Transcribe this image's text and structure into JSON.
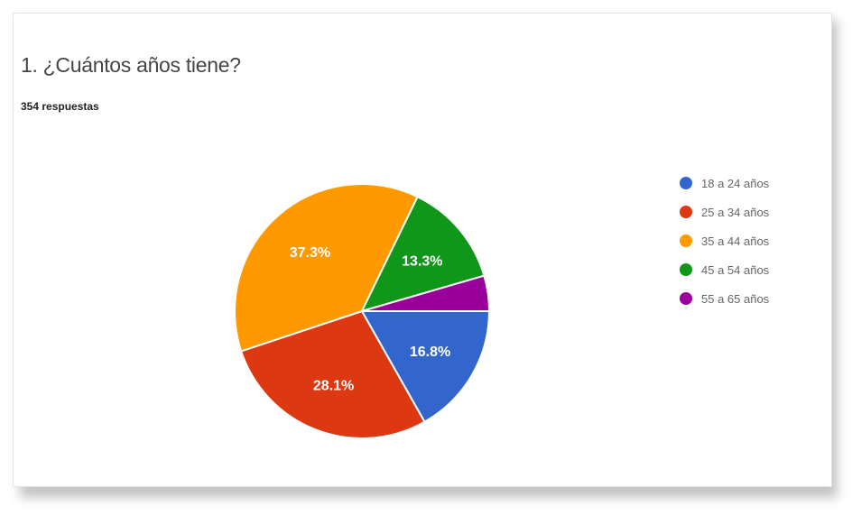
{
  "card": {
    "title": "1. ¿Cuántos años tiene?",
    "subtitle": "354 respuestas"
  },
  "chart_data": {
    "type": "pie",
    "categories": [
      "18 a 24 años",
      "25 a 34 años",
      "35 a 44 años",
      "45 a 54 años",
      "55 a 65 años"
    ],
    "values": [
      16.8,
      28.1,
      37.3,
      13.3,
      4.5
    ],
    "data_labels": [
      "16.8%",
      "28.1%",
      "37.3%",
      "13.3%",
      ""
    ],
    "colors": [
      "#3366cc",
      "#dc3912",
      "#ff9900",
      "#109618",
      "#990099"
    ],
    "start": "3 o'clock, clockwise",
    "legend_position": "right"
  }
}
